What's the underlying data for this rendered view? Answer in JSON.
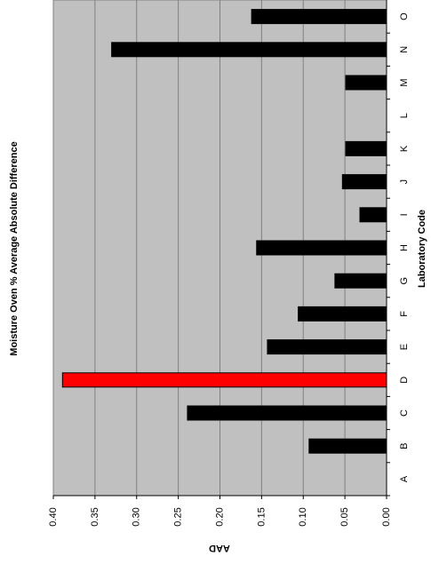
{
  "chart_data": {
    "type": "bar",
    "title": "Moisture Oven % Average Absolute Difference",
    "x_label": "Laboratory Code",
    "y_label": "AAD",
    "categories": [
      "A",
      "B",
      "C",
      "D",
      "E",
      "F",
      "G",
      "H",
      "I",
      "J",
      "K",
      "L",
      "M",
      "N",
      "O"
    ],
    "values": [
      null,
      0.093,
      0.239,
      0.389,
      0.143,
      0.106,
      0.062,
      0.156,
      0.032,
      0.053,
      0.049,
      null,
      0.049,
      0.33,
      0.162
    ],
    "colors": [
      "#000000",
      "#000000",
      "#000000",
      "#ff0000",
      "#000000",
      "#000000",
      "#000000",
      "#000000",
      "#000000",
      "#000000",
      "#000000",
      "#000000",
      "#000000",
      "#000000",
      "#000000"
    ],
    "ylim": [
      0,
      0.4
    ],
    "yticks": [
      {
        "value": 0,
        "label": "0.00"
      },
      {
        "value": 0.05,
        "label": "0.05"
      },
      {
        "value": 0.1,
        "label": "0.10"
      },
      {
        "value": 0.15,
        "label": "0.15"
      },
      {
        "value": 0.2,
        "label": "0.20"
      },
      {
        "value": 0.25,
        "label": "0.25"
      },
      {
        "value": 0.3,
        "label": "0.30"
      },
      {
        "value": 0.35,
        "label": "0.35"
      },
      {
        "value": 0.4,
        "label": "0.40"
      }
    ],
    "grid": true,
    "background": "#c0c0c0"
  }
}
